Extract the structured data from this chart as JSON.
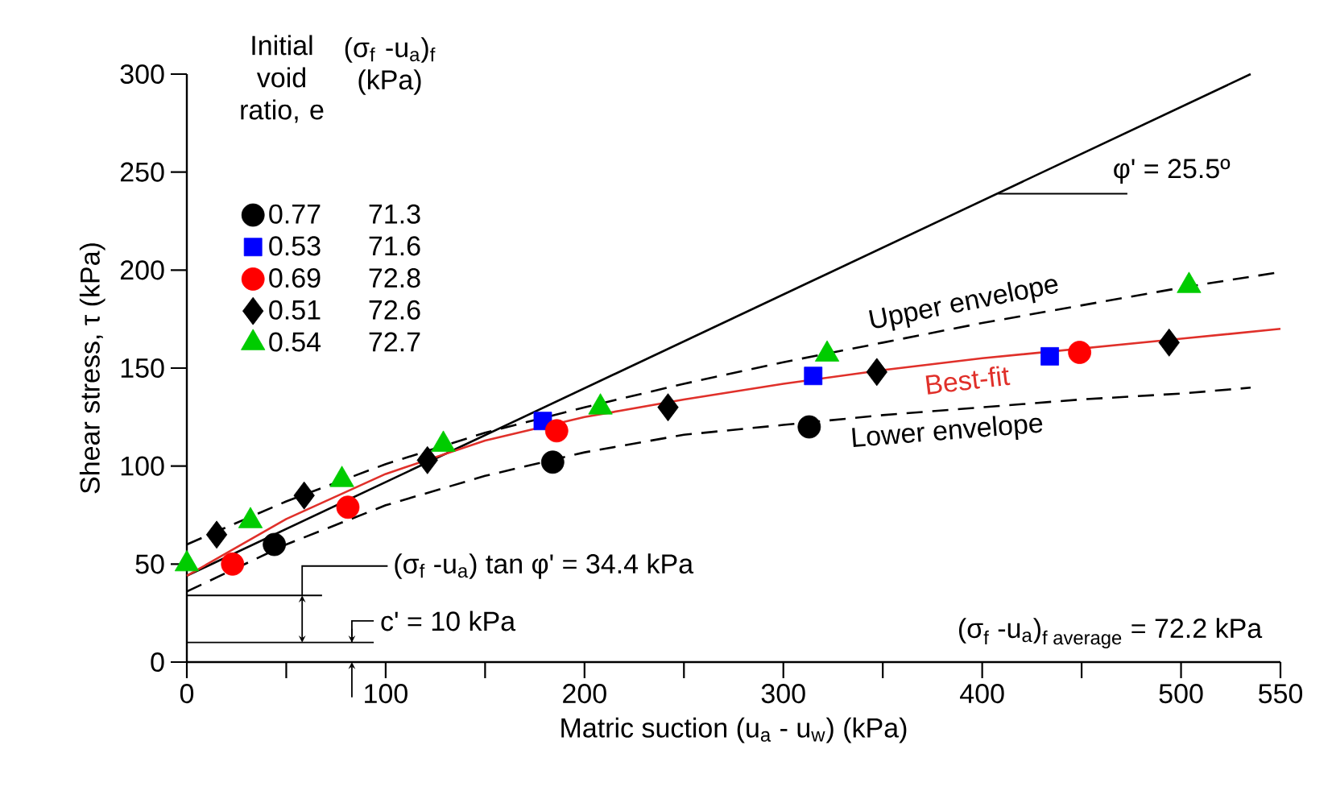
{
  "chart_data": {
    "type": "scatter",
    "xlabel": "Matric suction (u$_{a}$ - u$_{w}$) (kPa)",
    "ylabel": "Shear stress, τ (kPa)",
    "legend_title": "Initial void ratio, e",
    "xlim": [
      0,
      550
    ],
    "ylim": [
      0,
      300
    ],
    "xticks": [
      0,
      {
        "value": 50,
        "label": null
      },
      100,
      {
        "value": 150,
        "label": null
      },
      200,
      {
        "value": 250,
        "label": null
      },
      300,
      {
        "value": 350,
        "label": null
      },
      400,
      {
        "value": 450,
        "label": null
      },
      500,
      550
    ],
    "yticks": [
      0,
      50,
      100,
      150,
      200,
      250,
      300
    ],
    "legend": "top left",
    "series": [
      {
        "type": "line",
        "color": "#000000",
        "line_style": "solid",
        "x": [
          0,
          535
        ],
        "values": [
          44,
          300
        ]
      },
      {
        "type": "line",
        "name": "Upper envelope",
        "color": "#000000",
        "line_style": "dashed",
        "x": [
          0,
          50,
          100,
          150,
          200,
          250,
          300,
          350,
          400,
          450,
          500,
          550
        ],
        "values": [
          60,
          82,
          101,
          117,
          130,
          142,
          153,
          163,
          173,
          182,
          191,
          199
        ]
      },
      {
        "type": "line",
        "name": "Best-fit",
        "color": "#e0302a",
        "line_style": "solid",
        "x": [
          0,
          50,
          100,
          150,
          200,
          250,
          300,
          350,
          400,
          450,
          500,
          550
        ],
        "values": [
          44,
          73,
          96,
          113,
          125,
          134,
          142,
          149,
          155,
          160,
          165,
          170
        ]
      },
      {
        "type": "line",
        "name": "Lower envelope",
        "color": "#000000",
        "line_style": "dashed",
        "x": [
          0,
          50,
          100,
          150,
          200,
          250,
          300,
          350,
          400,
          450,
          500,
          535
        ],
        "values": [
          36,
          60,
          80,
          95,
          107,
          116,
          121,
          126,
          130,
          134,
          137,
          140
        ]
      },
      {
        "name": "0.77",
        "color": "#000000",
        "marker": "circle",
        "x": [
          44,
          184,
          313
        ],
        "values": [
          60,
          102,
          120
        ]
      },
      {
        "name": "0.53",
        "color": "#0000ff",
        "marker": "square",
        "x": [
          179,
          315,
          434
        ],
        "values": [
          123,
          146,
          156
        ]
      },
      {
        "name": "0.69",
        "color": "#ff0000",
        "marker": "circle",
        "x": [
          23,
          81,
          186,
          449
        ],
        "values": [
          50,
          79,
          118,
          158
        ]
      },
      {
        "name": "0.51",
        "color": "#000000",
        "marker": "diamond",
        "x": [
          15,
          59,
          121,
          242,
          347,
          494
        ],
        "values": [
          65,
          85,
          103,
          130,
          148,
          163
        ]
      },
      {
        "name": "0.54",
        "color": "#00cc00",
        "marker": "triangle",
        "x": [
          0,
          32,
          78,
          129,
          208,
          322,
          504
        ],
        "values": [
          50,
          72,
          93,
          111,
          130,
          157,
          192
        ]
      }
    ],
    "annotations": [
      {
        "text": "φ' = 25.5º",
        "x": 408,
        "y": 239
      },
      "(σ$_{f}$ -u$_{a}$)  tan φ' = 34.4 kPa",
      "c' = 10 kPa",
      "\\text{(σ}_{\\text{f}}\\text{ -u}_{\\text{a}}\\text{)}_{\\text{f average}}\\text{ = 72.2 kPa}",
      "(σ$_{f}$ -u$_{a}$)$_{f}$ (kPa)",
      "71.3",
      "71.6",
      "72.8",
      "72.6",
      "72.7"
    ]
  }
}
